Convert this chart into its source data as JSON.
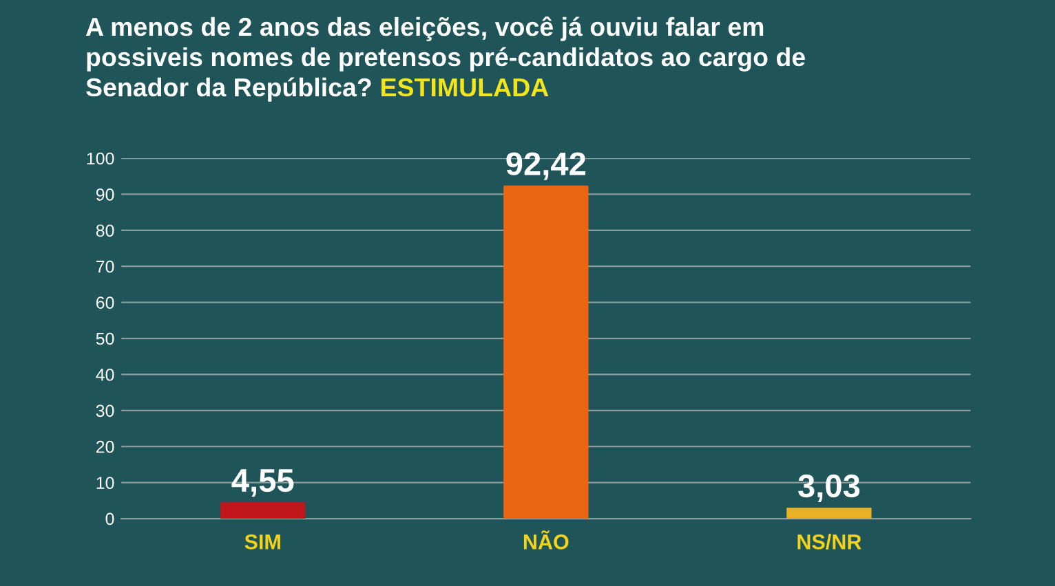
{
  "chart_data": {
    "type": "bar",
    "title": "A menos de 2 anos das eleições, você já ouviu falar em possiveis nomes de pretensos pré-candidatos ao cargo de Senador da República?",
    "subtitle": "ESTIMULADA",
    "categories": [
      "SIM",
      "NÃO",
      "NS/NR"
    ],
    "values": [
      4.55,
      92.42,
      3.03
    ],
    "value_labels": [
      "4,55",
      "92,42",
      "3,03"
    ],
    "colors": [
      "#c0161c",
      "#ec6512",
      "#e9b225"
    ],
    "ylim": [
      0,
      100
    ],
    "yticks": [
      0,
      10,
      20,
      30,
      40,
      50,
      60,
      70,
      80,
      90,
      100
    ],
    "grid": "y",
    "legend": false
  }
}
